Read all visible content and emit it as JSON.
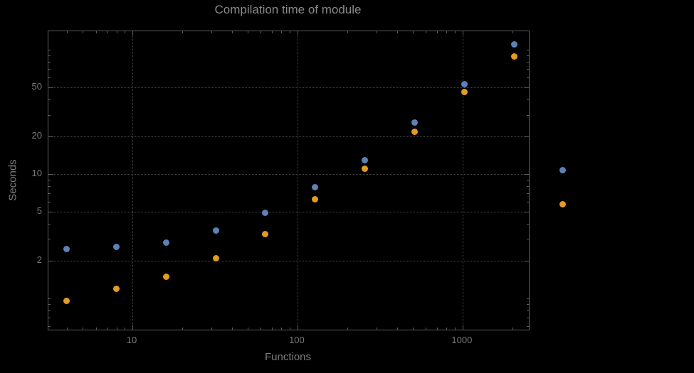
{
  "chart_data": {
    "type": "scatter",
    "title": "Compilation time of module",
    "xlabel": "Functions",
    "ylabel": "Seconds",
    "x_scale": "log",
    "y_scale": "log",
    "xlim": [
      3.1,
      2520
    ],
    "ylim": [
      0.56,
      141
    ],
    "x_major_ticks": [
      10,
      100,
      1000
    ],
    "x_tick_labels": [
      "10",
      "100",
      "1000"
    ],
    "y_major_ticks": [
      2,
      5,
      10,
      20,
      50
    ],
    "y_tick_labels": [
      "2",
      "5",
      "10",
      "20",
      "50"
    ],
    "grid": "dotted, at major ticks only",
    "legend_position": "right-outside, markers only (labels not visible)",
    "x": [
      4,
      8,
      16,
      32,
      64,
      128,
      256,
      512,
      1024,
      2048
    ],
    "series": [
      {
        "name": "blue",
        "color": "#5e81b5",
        "values": [
          2.5,
          2.6,
          2.8,
          3.5,
          4.9,
          7.8,
          13,
          26,
          53,
          110
        ]
      },
      {
        "name": "orange",
        "color": "#e19c24",
        "values": [
          0.95,
          1.2,
          1.5,
          2.1,
          3.3,
          6.3,
          11,
          22,
          46,
          88
        ]
      }
    ]
  },
  "legend": {
    "markers": [
      {
        "series": "blue",
        "color": "#5e81b5"
      },
      {
        "series": "orange",
        "color": "#e19c24"
      }
    ]
  },
  "colors": {
    "background": "#000000",
    "frame": "#5c5c5c",
    "grid": "#484848",
    "tick_label": "#7a7a7a",
    "title": "#8a8a8a",
    "axis_label": "#7d7d7d"
  }
}
